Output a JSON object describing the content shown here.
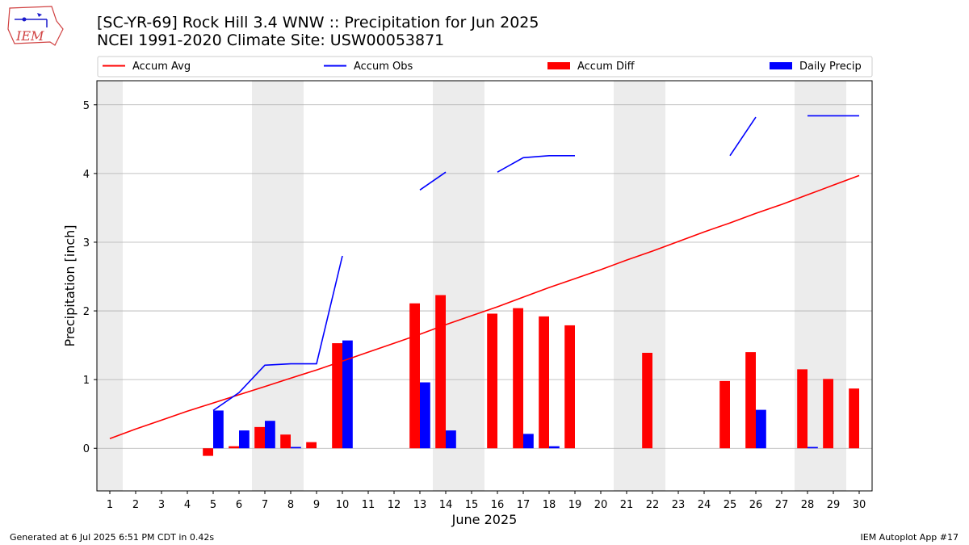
{
  "header": {
    "logo_text": "IEM",
    "title_line1": "[SC-YR-69] Rock Hill 3.4 WNW :: Precipitation for Jun 2025",
    "title_line2": "NCEI 1991-2020 Climate Site: USW00053871"
  },
  "footer": {
    "generated": "Generated at 6 Jul 2025 6:51 PM CDT in 0.42s",
    "app": "IEM Autoplot App #17"
  },
  "colors": {
    "avg": "#ff0000",
    "obs": "#0000ff",
    "diff": "#ff0000",
    "daily": "#0000ff",
    "weekend_band": "#ececec",
    "grid": "#b0b0b0"
  },
  "chart_data": {
    "type": "bar",
    "xlabel": "June 2025",
    "ylabel": "Precipitation [inch]",
    "xlim": [
      0.5,
      30.5
    ],
    "ylim": [
      -0.62,
      5.35
    ],
    "y_ticks": [
      0,
      1,
      2,
      3,
      4,
      5
    ],
    "x_ticks": [
      1,
      2,
      3,
      4,
      5,
      6,
      7,
      8,
      9,
      10,
      11,
      12,
      13,
      14,
      15,
      16,
      17,
      18,
      19,
      20,
      21,
      22,
      23,
      24,
      25,
      26,
      27,
      28,
      29,
      30
    ],
    "grid": "horizontal",
    "legend_position": "top",
    "weekend_bands": [
      [
        0.5,
        1.5
      ],
      [
        6.5,
        8.5
      ],
      [
        13.5,
        15.5
      ],
      [
        20.5,
        22.5
      ],
      [
        27.5,
        29.5
      ]
    ],
    "series": [
      {
        "name": "Accum Avg",
        "type": "line",
        "x": [
          1,
          2,
          3,
          4,
          5,
          6,
          7,
          8,
          9,
          10,
          11,
          12,
          13,
          14,
          15,
          16,
          17,
          18,
          19,
          20,
          21,
          22,
          23,
          24,
          25,
          26,
          27,
          28,
          29,
          30
        ],
        "values": [
          0.14,
          0.28,
          0.41,
          0.54,
          0.66,
          0.78,
          0.9,
          1.02,
          1.14,
          1.27,
          1.4,
          1.53,
          1.66,
          1.8,
          1.93,
          2.06,
          2.2,
          2.34,
          2.47,
          2.6,
          2.74,
          2.87,
          3.01,
          3.15,
          3.28,
          3.42,
          3.55,
          3.69,
          3.83,
          3.97
        ]
      },
      {
        "name": "Accum Obs",
        "type": "line",
        "x": [
          1,
          2,
          3,
          4,
          5,
          6,
          7,
          8,
          9,
          10,
          11,
          12,
          13,
          14,
          15,
          16,
          17,
          18,
          19,
          20,
          21,
          22,
          23,
          24,
          25,
          26,
          27,
          28,
          29,
          30
        ],
        "values": [
          null,
          null,
          null,
          null,
          0.55,
          0.81,
          1.21,
          1.23,
          1.23,
          2.8,
          null,
          null,
          3.76,
          4.02,
          null,
          4.02,
          4.23,
          4.26,
          4.26,
          null,
          null,
          null,
          null,
          null,
          4.26,
          4.82,
          null,
          4.84,
          4.84,
          4.84
        ]
      },
      {
        "name": "Accum Diff",
        "type": "bar",
        "x": [
          5,
          6,
          7,
          8,
          9,
          10,
          13,
          14,
          16,
          17,
          18,
          19,
          22,
          25,
          26,
          28,
          29,
          30
        ],
        "values": [
          -0.11,
          0.03,
          0.31,
          0.2,
          0.09,
          1.53,
          2.11,
          2.23,
          1.96,
          2.04,
          1.92,
          1.79,
          1.39,
          0.98,
          1.4,
          1.15,
          1.01,
          0.87
        ]
      },
      {
        "name": "Daily Precip",
        "type": "bar",
        "x": [
          5,
          6,
          7,
          8,
          10,
          13,
          14,
          17,
          18,
          26,
          28
        ],
        "values": [
          0.55,
          0.26,
          0.4,
          0.02,
          1.57,
          0.96,
          0.26,
          0.21,
          0.03,
          0.56,
          0.02
        ]
      }
    ]
  }
}
